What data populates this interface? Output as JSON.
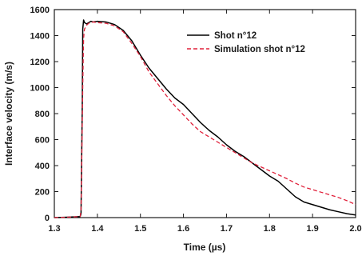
{
  "chart_data": {
    "type": "line",
    "title": "",
    "xlabel": "Time (µs)",
    "ylabel": "Interface velocity (m/s)",
    "xlim": [
      1.3,
      2.0
    ],
    "ylim": [
      0,
      1600
    ],
    "xticks": [
      "1.3",
      "1.4",
      "1.5",
      "1.6",
      "1.7",
      "1.8",
      "1.9",
      "2.0"
    ],
    "yticks": [
      "0",
      "200",
      "400",
      "600",
      "800",
      "1000",
      "1200",
      "1400",
      "1600"
    ],
    "grid": false,
    "legend_position": "top-right",
    "series": [
      {
        "name": "Shot n°12",
        "color": "#000000",
        "style": "solid",
        "x": [
          1.3,
          1.33,
          1.36,
          1.362,
          1.365,
          1.366,
          1.368,
          1.37,
          1.375,
          1.38,
          1.385,
          1.39,
          1.4,
          1.42,
          1.44,
          1.46,
          1.48,
          1.5,
          1.52,
          1.54,
          1.56,
          1.58,
          1.6,
          1.62,
          1.64,
          1.66,
          1.68,
          1.7,
          1.72,
          1.74,
          1.76,
          1.78,
          1.8,
          1.82,
          1.84,
          1.86,
          1.88,
          1.9,
          1.92,
          1.94,
          1.96,
          1.98,
          2.0
        ],
        "y": [
          0,
          3,
          8,
          30,
          900,
          1450,
          1520,
          1500,
          1490,
          1500,
          1510,
          1505,
          1510,
          1505,
          1485,
          1440,
          1360,
          1250,
          1150,
          1070,
          990,
          920,
          870,
          800,
          730,
          670,
          620,
          560,
          510,
          470,
          420,
          370,
          320,
          280,
          220,
          160,
          120,
          100,
          80,
          60,
          45,
          30,
          20
        ]
      },
      {
        "name": "Simulation shot n°12",
        "color": "#e0203a",
        "style": "dashed",
        "x": [
          1.3,
          1.33,
          1.36,
          1.362,
          1.364,
          1.366,
          1.368,
          1.37,
          1.375,
          1.38,
          1.39,
          1.4,
          1.42,
          1.44,
          1.46,
          1.48,
          1.5,
          1.52,
          1.54,
          1.56,
          1.58,
          1.6,
          1.62,
          1.64,
          1.66,
          1.68,
          1.7,
          1.72,
          1.74,
          1.76,
          1.78,
          1.8,
          1.82,
          1.84,
          1.86,
          1.88,
          1.9,
          1.92,
          1.94,
          1.96,
          1.98,
          2.0
        ],
        "y": [
          0,
          3,
          8,
          60,
          500,
          1000,
          1380,
          1450,
          1480,
          1495,
          1505,
          1500,
          1495,
          1475,
          1430,
          1340,
          1240,
          1120,
          1030,
          940,
          860,
          790,
          720,
          660,
          620,
          580,
          540,
          500,
          460,
          420,
          390,
          360,
          330,
          300,
          265,
          235,
          215,
          195,
          175,
          155,
          130,
          100
        ]
      }
    ]
  }
}
